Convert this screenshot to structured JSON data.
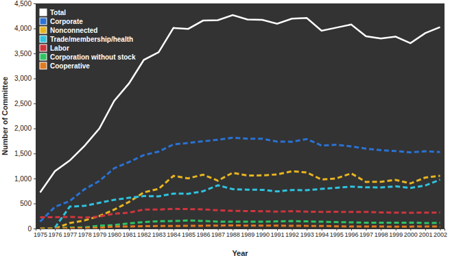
{
  "chart_data": {
    "type": "line",
    "x_label": "Year",
    "y_label": "Number of Committee",
    "categories": [
      "1975",
      "1976",
      "1977",
      "1978",
      "1979",
      "1980",
      "1981",
      "1982",
      "1983",
      "1984",
      "1985",
      "1986",
      "1987",
      "1988",
      "1989",
      "1990",
      "1991",
      "1992",
      "1993",
      "1994",
      "1995",
      "1996",
      "1997",
      "1998",
      "1999",
      "2000",
      "2001",
      "2002"
    ],
    "ylim": [
      0,
      4500
    ],
    "yticks": [
      0,
      500,
      {
        "value": 1000,
        "label": "1,000"
      },
      {
        "value": 1500,
        "label": "1,500"
      },
      {
        "value": 2000,
        "label": "2,000"
      },
      {
        "value": 2500,
        "label": "2,500"
      },
      {
        "value": 3000,
        "label": "3,000"
      },
      {
        "value": 3500,
        "label": "3,500"
      },
      {
        "value": 4000,
        "label": "4,000"
      },
      {
        "value": 4500,
        "label": "4,500"
      }
    ],
    "grid": false,
    "legend": "upper left",
    "series": [
      {
        "name": "Total",
        "color": "#ffffff",
        "line_style": "solid",
        "values": [
          722,
          1146,
          1360,
          1653,
          2000,
          2551,
          2901,
          3371,
          3525,
          4009,
          3992,
          4157,
          4165,
          4268,
          4178,
          4172,
          4094,
          4195,
          4210,
          3954,
          4016,
          4079,
          3844,
          3798,
          3835,
          3706,
          3907,
          4027
        ]
      },
      {
        "name": "Corporate",
        "color": "#2a72d4",
        "line_style": "dashed",
        "values": [
          139,
          433,
          550,
          785,
          950,
          1204,
          1329,
          1469,
          1538,
          1682,
          1710,
          1744,
          1775,
          1816,
          1796,
          1795,
          1738,
          1735,
          1789,
          1660,
          1674,
          1642,
          1597,
          1567,
          1548,
          1523,
          1545,
          1528
        ]
      },
      {
        "name": "Nonconnected",
        "color": "#e8b520",
        "line_style": "dashed",
        "values": [
          0,
          0,
          110,
          162,
          250,
          378,
          531,
          723,
          793,
          1053,
          1003,
          1077,
          957,
          1115,
          1060,
          1062,
          1083,
          1145,
          1121,
          980,
          1002,
          1103,
          931,
          935,
          972,
          902,
          1019,
          1055
        ]
      },
      {
        "name": "Trade/membership/health",
        "color": "#2fc3e0",
        "line_style": "dashed",
        "values": [
          null,
          20,
          438,
          453,
          514,
          574,
          614,
          649,
          643,
          698,
          695,
          745,
          865,
          786,
          777,
          774,
          742,
          770,
          766,
          792,
          815,
          838,
          825,
          821,
          844,
          812,
          860,
          975
        ]
      },
      {
        "name": "Labor",
        "color": "#d0353f",
        "line_style": "dashed",
        "values": [
          226,
          224,
          234,
          217,
          240,
          297,
          318,
          380,
          378,
          394,
          388,
          384,
          364,
          354,
          349,
          346,
          338,
          347,
          337,
          333,
          334,
          332,
          332,
          321,
          318,
          316,
          317,
          320
        ]
      },
      {
        "name": "Corporation without stock",
        "color": "#2ec464",
        "line_style": "dashed",
        "values": [
          null,
          0,
          20,
          24,
          56,
          68,
          103,
          130,
          145,
          150,
          162,
          151,
          138,
          137,
          136,
          136,
          142,
          149,
          142,
          136,
          129,
          123,
          117,
          116,
          115,
          118,
          110,
          112
        ]
      },
      {
        "name": "Cooperative",
        "color": "#e07b20",
        "line_style": "dashed",
        "values": [
          null,
          0,
          8,
          12,
          13,
          42,
          41,
          47,
          51,
          52,
          54,
          56,
          59,
          61,
          59,
          59,
          57,
          56,
          53,
          53,
          44,
          41,
          42,
          40,
          38,
          39,
          41,
          39
        ]
      }
    ]
  }
}
